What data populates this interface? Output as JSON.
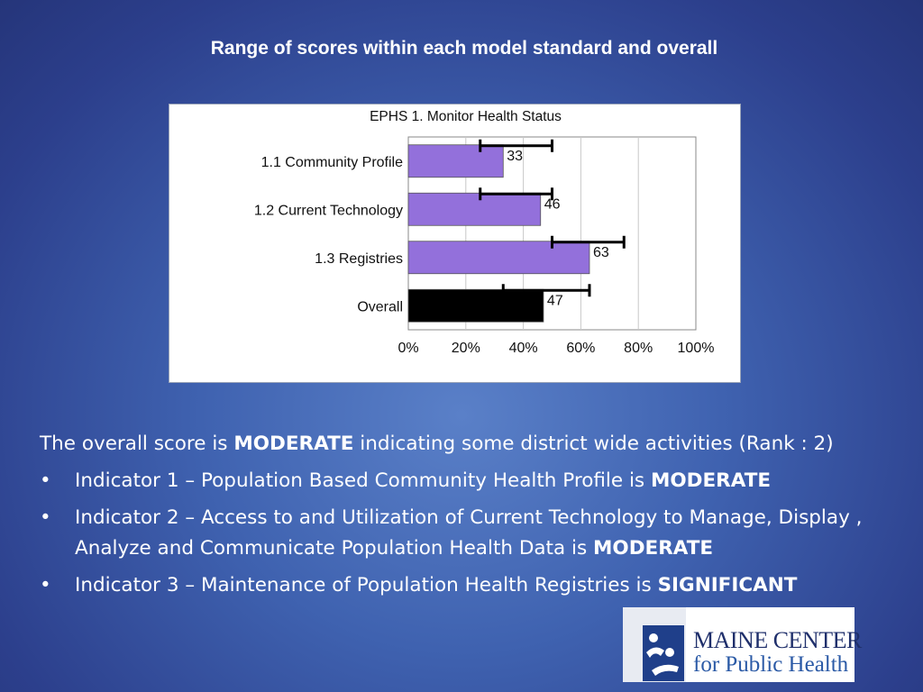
{
  "slide": {
    "title": "Range of scores within each model standard and overall"
  },
  "chart_data": {
    "type": "bar",
    "orientation": "horizontal",
    "title": "EPHS 1. Monitor Health Status",
    "categories": [
      "1.1 Community Profile",
      "1.2 Current Technology",
      "1.3 Registries",
      "Overall"
    ],
    "values": [
      33,
      46,
      63,
      47
    ],
    "value_labels": [
      "33",
      "46",
      "63",
      "47"
    ],
    "ranges": [
      [
        25,
        50
      ],
      [
        25,
        50
      ],
      [
        50,
        75
      ],
      [
        33,
        63
      ]
    ],
    "bar_colors": [
      "#9370db",
      "#9370db",
      "#9370db",
      "#000000"
    ],
    "xlim": [
      0,
      100
    ],
    "xticks": [
      0,
      20,
      40,
      60,
      80,
      100
    ],
    "xtick_labels": [
      "0%",
      "20%",
      "40%",
      "60%",
      "80%",
      "100%"
    ],
    "grid": true,
    "xlabel": "",
    "ylabel": ""
  },
  "body": {
    "lead_prefix": "The overall score is ",
    "lead_bold": "MODERATE",
    "lead_suffix": " indicating some district wide activities (Rank : 2)",
    "bullet_char": "•",
    "bullets": [
      {
        "text": "Indicator 1 – Population Based Community Health Profile is ",
        "bold": "MODERATE"
      },
      {
        "text": "Indicator 2 – Access to and Utilization of Current Technology to Manage, Display , Analyze and Communicate Population Health Data is ",
        "bold": "MODERATE"
      },
      {
        "text": "Indicator 3 – Maintenance of Population Health Registries is ",
        "bold": "SIGNIFICANT"
      }
    ]
  },
  "logo": {
    "line1": "MAINE CENTER",
    "line2": "for Public Health"
  }
}
